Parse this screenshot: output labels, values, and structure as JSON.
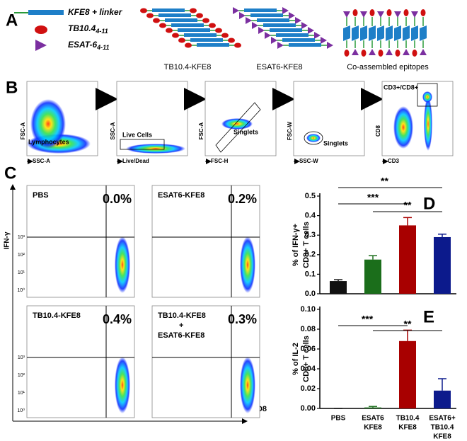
{
  "panel_a": {
    "label": "A",
    "legend": [
      {
        "text": "KFE8 + linker"
      },
      {
        "text": "TB10.4",
        "sub": "4-11"
      },
      {
        "text": "ESAT-6",
        "sub": "4-11"
      }
    ],
    "assemblies": [
      "TB10.4-KFE8",
      "ESAT6-KFE8",
      "Co-assembled epitopes"
    ]
  },
  "panel_b": {
    "label": "B",
    "plots": [
      {
        "y": "FSC-A",
        "x": "SSC-A",
        "gate": "Lymphocytes"
      },
      {
        "y": "SSC-A",
        "x": "Live/Dead",
        "gate": "Live Cells"
      },
      {
        "y": "FSC-A",
        "x": "FSC-H",
        "gate": "Singlets"
      },
      {
        "y": "FSC-W",
        "x": "SSC-W",
        "gate": "Singlets"
      },
      {
        "y": "CD8",
        "x": "CD3",
        "gate": "CD3+/CD8+"
      }
    ]
  },
  "panel_c": {
    "label": "C",
    "y_axis": "IFN-γ",
    "x_axis": "CD8",
    "ticks": [
      "10³",
      "10²",
      "10¹",
      "10⁰"
    ],
    "plots": [
      {
        "name": [
          "PBS"
        ],
        "percent": "0.0%"
      },
      {
        "name": [
          "ESAT6-KFE8"
        ],
        "percent": "0.2%"
      },
      {
        "name": [
          "TB10.4-KFE8"
        ],
        "percent": "0.4%"
      },
      {
        "name": [
          "TB10.4-KFE8",
          "+",
          "ESAT6-KFE8"
        ],
        "percent": "0.3%"
      }
    ]
  },
  "chart_data": [
    {
      "type": "bar",
      "label": "D",
      "ylabel": [
        "% of IFN-γ+",
        "CD8+ T cells"
      ],
      "categories": [
        null,
        null,
        null,
        null
      ],
      "values": [
        0.065,
        0.175,
        0.35,
        0.29
      ],
      "errors": [
        0.007,
        0.02,
        0.04,
        0.015
      ],
      "colors": [
        "#111111",
        "#1b6e1b",
        "#a80000",
        "#0c1a8c"
      ],
      "ylim": [
        0,
        0.5
      ],
      "yticks": [
        {
          "value": 0,
          "label": "0.0"
        },
        0.1,
        0.2,
        0.3,
        0.4,
        0.5
      ],
      "annotations": [
        "**",
        "***",
        "**"
      ]
    },
    {
      "type": "bar",
      "label": "E",
      "ylabel": [
        "% of IL-2",
        "CD8+ T cells"
      ],
      "categories": [
        [
          "PBS"
        ],
        [
          "ESAT6",
          "KFE8"
        ],
        [
          "TB10.4",
          "KFE8"
        ],
        [
          "ESAT6+",
          "TB10.4",
          "KFE8"
        ]
      ],
      "values": [
        0,
        0.001,
        0.068,
        0.018
      ],
      "errors": [
        0,
        0.001,
        0.011,
        0.012
      ],
      "colors": [
        "#111111",
        "#1b6e1b",
        "#a80000",
        "#0c1a8c"
      ],
      "ylim": [
        0,
        0.1
      ],
      "yticks": [
        {
          "value": 0,
          "label": "0.00"
        },
        {
          "value": 0.02,
          "label": "0.02"
        },
        {
          "value": 0.04,
          "label": "0.04"
        },
        {
          "value": 0.06,
          "label": "0.06"
        },
        {
          "value": 0.08,
          "label": "0.08"
        },
        {
          "value": 0.1,
          "label": "0.10"
        }
      ],
      "annotations": [
        "***",
        "**"
      ]
    }
  ]
}
